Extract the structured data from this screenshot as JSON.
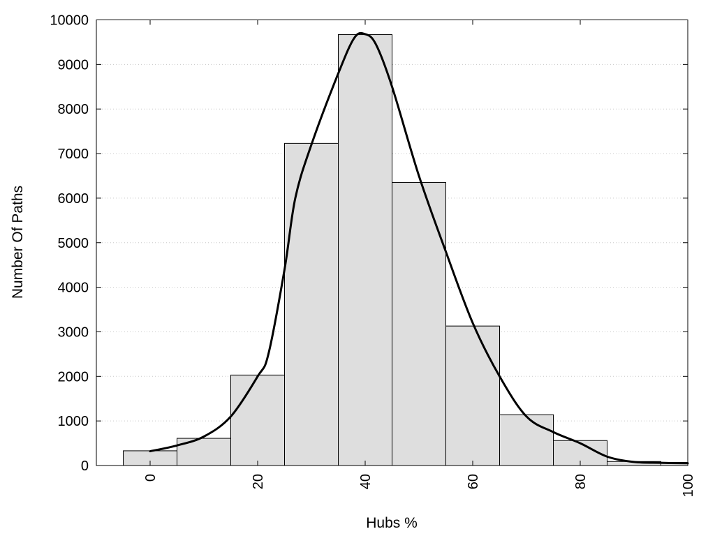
{
  "chart_data": {
    "type": "bar",
    "title": "",
    "xlabel": "Hubs %",
    "ylabel": "Number Of Paths",
    "xlim": [
      -10,
      100
    ],
    "ylim": [
      0,
      10000
    ],
    "grid": "horizontal-dotted",
    "legend": "none",
    "x_ticks": [
      0,
      20,
      40,
      60,
      80,
      100
    ],
    "y_ticks": [
      0,
      1000,
      2000,
      3000,
      4000,
      5000,
      6000,
      7000,
      8000,
      9000,
      10000
    ],
    "bars": [
      {
        "center": 0,
        "value": 330
      },
      {
        "center": 10,
        "value": 610
      },
      {
        "center": 20,
        "value": 2030
      },
      {
        "center": 30,
        "value": 7230
      },
      {
        "center": 40,
        "value": 9670
      },
      {
        "center": 50,
        "value": 6350
      },
      {
        "center": 60,
        "value": 3130
      },
      {
        "center": 70,
        "value": 1140
      },
      {
        "center": 80,
        "value": 560
      },
      {
        "center": 90,
        "value": 90
      },
      {
        "center": 100,
        "value": 70
      }
    ],
    "bin_width": 10,
    "density_curve": {
      "x": [
        0,
        5,
        10,
        15,
        20,
        22,
        25,
        27,
        30,
        35,
        38,
        40,
        42,
        45,
        50,
        55,
        60,
        65,
        70,
        75,
        80,
        85,
        90,
        95,
        100
      ],
      "y": [
        320,
        450,
        650,
        1100,
        2000,
        2500,
        4400,
        6000,
        7200,
        8800,
        9600,
        9680,
        9450,
        8500,
        6500,
        4800,
        3200,
        2000,
        1100,
        750,
        500,
        200,
        80,
        60,
        50
      ]
    },
    "colors": {
      "bar_fill": "#dedede",
      "bar_edge": "#000000",
      "curve": "#000000"
    }
  }
}
